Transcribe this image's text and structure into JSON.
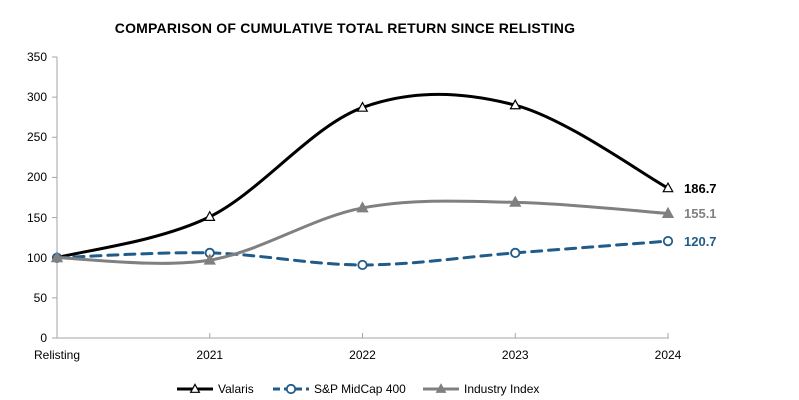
{
  "title": "COMPARISON OF CUMULATIVE TOTAL RETURN SINCE RELISTING",
  "colors": {
    "axis": "#A6A6A6",
    "valaris": "#000000",
    "midcap": "#1F5C8A",
    "industry": "#808080",
    "background": "#FFFFFF"
  },
  "chart_data": {
    "type": "line",
    "title": "COMPARISON OF CUMULATIVE TOTAL RETURN SINCE RELISTING",
    "categories": [
      "Relisting",
      "2021",
      "2022",
      "2023",
      "2024"
    ],
    "series": [
      {
        "name": "Valaris",
        "values": [
          100,
          151,
          287,
          290,
          186.7
        ],
        "color": "#000000",
        "line_style": "solid",
        "marker": "triangle-open",
        "end_label": "186.7"
      },
      {
        "name": "S&P MidCap 400",
        "values": [
          100,
          106,
          91,
          106,
          120.7
        ],
        "color": "#1F5C8A",
        "line_style": "dashed",
        "marker": "circle-open",
        "end_label": "120.7"
      },
      {
        "name": "Industry Index",
        "values": [
          100,
          97,
          162,
          169,
          155.1
        ],
        "color": "#808080",
        "line_style": "solid",
        "marker": "triangle-filled",
        "end_label": "155.1"
      }
    ],
    "xlabel": "",
    "ylabel": "",
    "ylim": [
      0,
      350
    ],
    "yticks": [
      0,
      50,
      100,
      150,
      200,
      250,
      300,
      350
    ],
    "grid": false,
    "smooth": true,
    "legend_position": "bottom"
  }
}
